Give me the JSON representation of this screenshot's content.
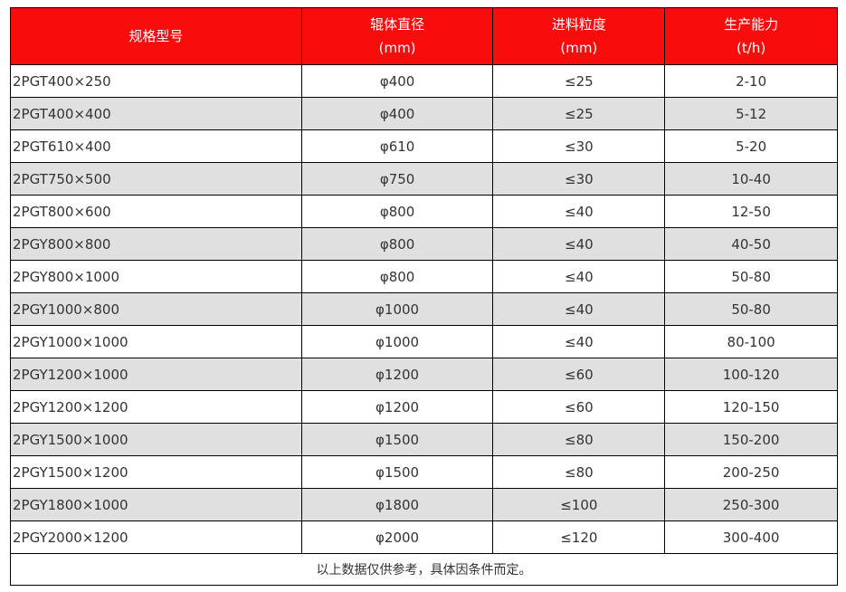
{
  "headers": [
    {
      "line1": "规格型号",
      "line2": ""
    },
    {
      "line1": "辊体直径",
      "line2": "(mm)"
    },
    {
      "line1": "进料粒度",
      "line2": "(mm)"
    },
    {
      "line1": "生产能力",
      "line2": "(t/h)"
    }
  ],
  "rows": [
    [
      "2PGT400×250",
      "φ400",
      "≤25",
      "2-10"
    ],
    [
      "2PGT400×400",
      "φ400",
      "≤25",
      "5-12"
    ],
    [
      "2PGT610×400",
      "φ610",
      "≤30",
      "5-20"
    ],
    [
      "2PGT750×500",
      "φ750",
      "≤30",
      "10-40"
    ],
    [
      "2PGT800×600",
      "φ800",
      "≤40",
      "12-50"
    ],
    [
      "2PGY800×800",
      "φ800",
      "≤40",
      "40-50"
    ],
    [
      "2PGY800×1000",
      "φ800",
      "≤40",
      "50-80"
    ],
    [
      "2PGY1000×800",
      "φ1000",
      "≤40",
      "50-80"
    ],
    [
      "2PGY1000×1000",
      "φ1000",
      "≤40",
      "80-100"
    ],
    [
      "2PGY1200×1000",
      "φ1200",
      "≤60",
      "100-120"
    ],
    [
      "2PGY1200×1200",
      "φ1200",
      "≤60",
      "120-150"
    ],
    [
      "2PGY1500×1000",
      "φ1500",
      "≤80",
      "150-200"
    ],
    [
      "2PGY1500×1200",
      "φ1500",
      "≤80",
      "200-250"
    ],
    [
      "2PGY1800×1000",
      "φ1800",
      "≤100",
      "250-300"
    ],
    [
      "2PGY2000×1200",
      "φ2000",
      "≤120",
      "300-400"
    ]
  ],
  "footer_note": "以上数据仅供参考，具体因条件而定。",
  "colors": {
    "header_bg": "#f80c0c",
    "alt_row_bg": "#e0e0e0"
  }
}
